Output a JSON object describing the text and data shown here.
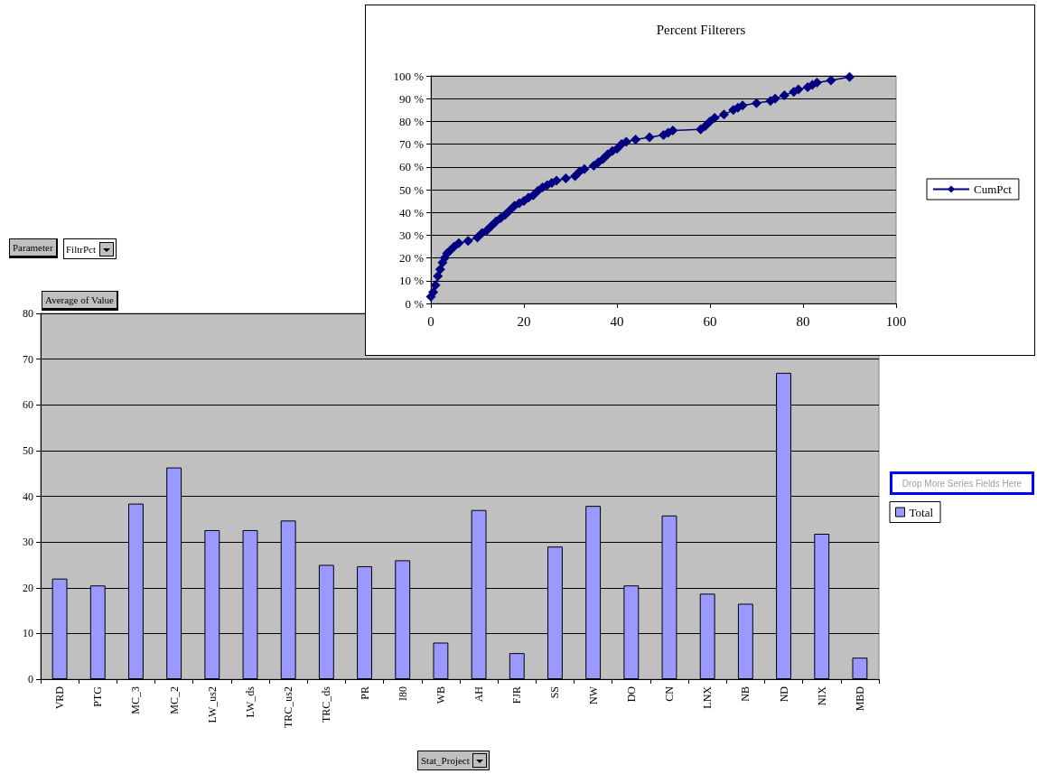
{
  "chart_data": [
    {
      "type": "line",
      "title": "Percent Filterers",
      "legend": "right",
      "grid": "y",
      "marker": "diamond",
      "line_style": "solid",
      "xlim": [
        0,
        100
      ],
      "xticks": [
        0,
        20,
        40,
        60,
        80,
        100
      ],
      "ylim": [
        0,
        100
      ],
      "yticks": [
        {
          "value": 0,
          "label": "0 %"
        },
        {
          "value": 10,
          "label": "10 %"
        },
        {
          "value": 20,
          "label": "20 %"
        },
        {
          "value": 30,
          "label": "30 %"
        },
        {
          "value": 40,
          "label": "40 %"
        },
        {
          "value": 50,
          "label": "50 %"
        },
        {
          "value": 60,
          "label": "60 %"
        },
        {
          "value": 70,
          "label": "70 %"
        },
        {
          "value": 80,
          "label": "80 %"
        },
        {
          "value": 90,
          "label": "90 %"
        },
        {
          "value": 100,
          "label": "100 %"
        }
      ],
      "series": [
        {
          "name": "CumPct",
          "color": "#000080",
          "x": [
            0,
            0.5,
            1,
            1.5,
            2,
            2.5,
            3,
            3.5,
            4,
            5,
            6,
            8,
            10,
            11,
            12,
            13,
            14,
            15,
            16,
            17,
            18,
            19,
            20,
            21,
            22,
            23,
            24,
            25,
            26,
            27,
            29,
            31,
            32,
            33,
            35,
            36,
            37,
            38,
            39,
            40,
            41,
            42,
            44,
            47,
            50,
            51,
            52,
            58,
            59,
            60,
            61,
            63,
            65,
            66,
            67,
            70,
            73,
            74,
            76,
            78,
            79,
            81,
            82,
            83,
            86,
            90
          ],
          "values": [
            3,
            5,
            8,
            12,
            15,
            18,
            20,
            22,
            23,
            25,
            26.5,
            27.5,
            29,
            31,
            32,
            34,
            36,
            37.5,
            39,
            41,
            43,
            44,
            45,
            46.5,
            47.5,
            49.5,
            51,
            52,
            53,
            54,
            55,
            56,
            58,
            59,
            60.5,
            62,
            63.5,
            65.5,
            67,
            68,
            70,
            71,
            72,
            73,
            74,
            75,
            76,
            76.5,
            78,
            80,
            81.5,
            83,
            85,
            86,
            87,
            88,
            89,
            90,
            91.5,
            93,
            94,
            95,
            96,
            97,
            98,
            99.5
          ]
        }
      ]
    },
    {
      "type": "bar",
      "ylabel": "Average of Value",
      "xlabel": "Stat_Project",
      "legend": "right",
      "grid": "y",
      "annotations": [
        "Parameter",
        "FiltrPct",
        "Drop More Series Fields Here"
      ],
      "categories": [
        "VRD",
        "PTG",
        "MC_3",
        "MC_2",
        "LW_us2",
        "LW_ds",
        "TRC_us2",
        "TRC_ds",
        "PR",
        "I80",
        "WB",
        "AH",
        "FJR",
        "SS",
        "NW",
        "DO",
        "CN",
        "LNX",
        "NB",
        "ND",
        "NIX",
        "MBD"
      ],
      "ylim": [
        0,
        80
      ],
      "yticks": [
        0,
        10,
        20,
        30,
        40,
        50,
        60,
        70,
        80
      ],
      "series": [
        {
          "name": "Total",
          "color": "#9999ff",
          "values": [
            22,
            20.5,
            38.4,
            46.3,
            32.6,
            32.6,
            34.7,
            25,
            24.7,
            26,
            8,
            37,
            5.7,
            29,
            37.9,
            20.5,
            35.8,
            18.7,
            16.5,
            67,
            31.8,
            4.7
          ]
        }
      ]
    }
  ]
}
